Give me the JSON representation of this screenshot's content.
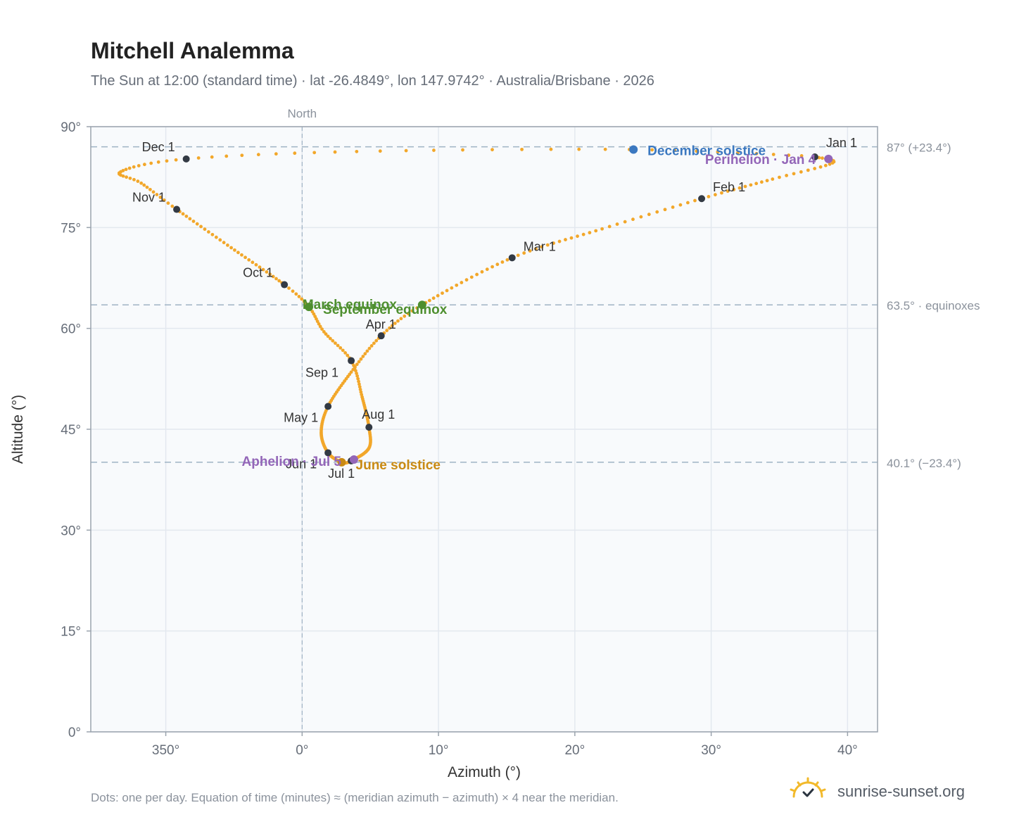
{
  "title": "Mitchell Analemma",
  "subtitle": "The Sun at 12:00 (standard time) · lat -26.4849°, lon 147.9742° · Australia/Brisbane · 2026",
  "footnote": "Dots: one per day. Equation of time (minutes) ≈ (meridian azimuth − azimuth) × 4 near the meridian.",
  "brand": "sunrise-sunset.org",
  "chart_data": {
    "type": "scatter",
    "xlabel": "Azimuth (°)",
    "ylabel": "Altitude (°)",
    "xlim": [
      344.5,
      42.2
    ],
    "ylim": [
      0,
      90
    ],
    "xticks": [
      {
        "v": 350,
        "label": "350°"
      },
      {
        "v": 0,
        "label": "0°"
      },
      {
        "v": 10,
        "label": "10°"
      },
      {
        "v": 20,
        "label": "20°"
      },
      {
        "v": 30,
        "label": "30°"
      },
      {
        "v": 40,
        "label": "40°"
      }
    ],
    "yticks": [
      {
        "v": 0,
        "label": "0°"
      },
      {
        "v": 15,
        "label": "15°"
      },
      {
        "v": 30,
        "label": "30°"
      },
      {
        "v": 45,
        "label": "45°"
      },
      {
        "v": 60,
        "label": "60°"
      },
      {
        "v": 75,
        "label": "75°"
      },
      {
        "v": 90,
        "label": "90°"
      }
    ],
    "meridian": {
      "x": 0,
      "label": "North"
    },
    "reference_lines": [
      {
        "y": 87.0,
        "label": "87° (+23.4°)"
      },
      {
        "y": 63.5,
        "label": "63.5° · equinoxes"
      },
      {
        "y": 40.1,
        "label": "40.1° (−23.4°)"
      }
    ],
    "path_anchors": [
      {
        "day": 1,
        "az": 37.6,
        "alt": 85.5
      },
      {
        "day": 10,
        "az": 38.9,
        "alt": 84.6
      },
      {
        "day": 20,
        "az": 34.5,
        "alt": 82.2
      },
      {
        "day": 32,
        "az": 29.3,
        "alt": 79.3
      },
      {
        "day": 45,
        "az": 22.0,
        "alt": 74.8
      },
      {
        "day": 60,
        "az": 15.4,
        "alt": 70.5
      },
      {
        "day": 79,
        "az": 8.8,
        "alt": 63.5
      },
      {
        "day": 91,
        "az": 5.8,
        "alt": 58.9
      },
      {
        "day": 105,
        "az": 3.6,
        "alt": 53.5
      },
      {
        "day": 121,
        "az": 1.9,
        "alt": 48.4
      },
      {
        "day": 135,
        "az": 1.4,
        "alt": 44.5
      },
      {
        "day": 152,
        "az": 1.9,
        "alt": 41.5
      },
      {
        "day": 172,
        "az": 2.9,
        "alt": 40.1
      },
      {
        "day": 182,
        "az": 3.6,
        "alt": 40.3
      },
      {
        "day": 200,
        "az": 4.9,
        "alt": 42.2
      },
      {
        "day": 213,
        "az": 4.9,
        "alt": 45.3
      },
      {
        "day": 230,
        "az": 4.4,
        "alt": 49.8
      },
      {
        "day": 244,
        "az": 3.6,
        "alt": 55.2
      },
      {
        "day": 256,
        "az": 1.6,
        "alt": 59.5
      },
      {
        "day": 266,
        "az": 0.5,
        "alt": 63.2
      },
      {
        "day": 274,
        "az": 358.7,
        "alt": 66.5
      },
      {
        "day": 290,
        "az": 354.8,
        "alt": 72.0
      },
      {
        "day": 305,
        "az": 350.8,
        "alt": 77.7
      },
      {
        "day": 315,
        "az": 348.2,
        "alt": 81.6
      },
      {
        "day": 324,
        "az": 346.7,
        "alt": 83.3
      },
      {
        "day": 335,
        "az": 351.5,
        "alt": 85.2
      },
      {
        "day": 345,
        "az": 4.0,
        "alt": 86.3
      },
      {
        "day": 355,
        "az": 24.0,
        "alt": 86.6
      },
      {
        "day": 365,
        "az": 37.4,
        "alt": 85.6
      }
    ],
    "month_markers": [
      {
        "label": "Jan 1",
        "az": 37.6,
        "alt": 85.5
      },
      {
        "label": "Feb 1",
        "az": 29.3,
        "alt": 79.3
      },
      {
        "label": "Mar 1",
        "az": 15.4,
        "alt": 70.5
      },
      {
        "label": "Apr 1",
        "az": 5.8,
        "alt": 58.9
      },
      {
        "label": "May 1",
        "az": 1.9,
        "alt": 48.4
      },
      {
        "label": "Jun 1",
        "az": 1.9,
        "alt": 41.5
      },
      {
        "label": "Jul 1",
        "az": 3.6,
        "alt": 40.3
      },
      {
        "label": "Aug 1",
        "az": 4.9,
        "alt": 45.3
      },
      {
        "label": "Sep 1",
        "az": 3.6,
        "alt": 55.2
      },
      {
        "label": "Oct 1",
        "az": 358.7,
        "alt": 66.5
      },
      {
        "label": "Nov 1",
        "az": 350.8,
        "alt": 77.7
      },
      {
        "label": "Dec 1",
        "az": 351.5,
        "alt": 85.2
      }
    ],
    "events": [
      {
        "label": "March equinox",
        "az": 8.8,
        "alt": 63.5,
        "color": "#4e8f2f"
      },
      {
        "label": "September equinox",
        "az": 0.5,
        "alt": 63.2,
        "color": "#4e8f2f"
      },
      {
        "label": "June solstice",
        "az": 2.9,
        "alt": 40.1,
        "color": "#c98a12"
      },
      {
        "label": "December solstice",
        "az": 24.3,
        "alt": 86.6,
        "color": "#3b78c0"
      },
      {
        "label": "Perihelion · Jan 4",
        "az": 38.6,
        "alt": 85.2,
        "color": "#9366b8"
      },
      {
        "label": "Aphelion · Jul 5",
        "az": 3.8,
        "alt": 40.5,
        "color": "#9366b8"
      }
    ],
    "colors": {
      "path": "#f2a72a",
      "marker": "#333a44",
      "grid": "#e3e8ef",
      "plot_bg": "#f8fafc",
      "axis": "#9aa3ad",
      "ref": "#9fb3c4"
    }
  }
}
